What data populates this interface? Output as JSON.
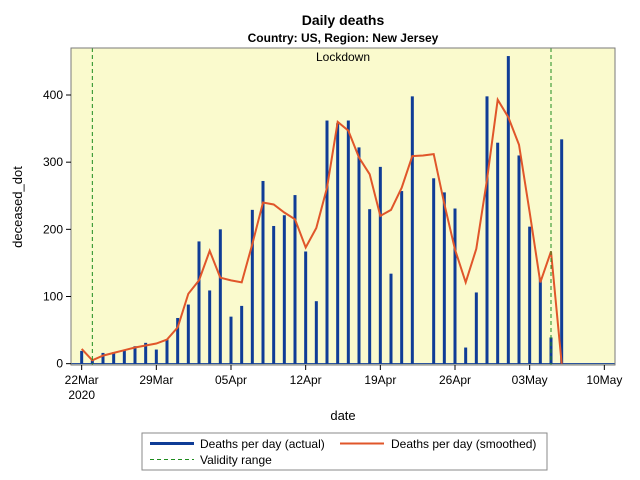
{
  "chart_data": {
    "type": "bar",
    "title": "Daily deaths",
    "subtitle": "Country: US, Region: New Jersey",
    "xlabel": "date",
    "ylabel": "deceased_dot",
    "ylim": [
      -2,
      470
    ],
    "yticks": [
      0,
      100,
      200,
      300,
      400
    ],
    "x_start": "2020-03-21",
    "x_end": "2020-05-11",
    "xticks": [
      {
        "day": 1,
        "label": "22Mar",
        "sublabel": "2020"
      },
      {
        "day": 8,
        "label": "29Mar",
        "sublabel": ""
      },
      {
        "day": 15,
        "label": "05Apr",
        "sublabel": ""
      },
      {
        "day": 22,
        "label": "12Apr",
        "sublabel": ""
      },
      {
        "day": 29,
        "label": "19Apr",
        "sublabel": ""
      },
      {
        "day": 36,
        "label": "26Apr",
        "sublabel": ""
      },
      {
        "day": 43,
        "label": "03May",
        "sublabel": ""
      },
      {
        "day": 50,
        "label": "10May",
        "sublabel": ""
      }
    ],
    "day_note": "day index = days since 2020-03-21",
    "lockdown_band": {
      "start_day": 0,
      "end_day": 51,
      "label": "Lockdown",
      "color": "#fafacd"
    },
    "validity_range": {
      "start_day": 2,
      "end_day": 45
    },
    "series": [
      {
        "name": "Deaths per day (actual)",
        "color": "#0f3c96",
        "days": [
          1,
          2,
          3,
          4,
          5,
          6,
          7,
          8,
          9,
          10,
          11,
          12,
          13,
          14,
          15,
          16,
          17,
          18,
          19,
          20,
          21,
          22,
          23,
          24,
          25,
          26,
          27,
          28,
          29,
          30,
          31,
          32,
          33,
          34,
          35,
          36,
          37,
          38,
          39,
          40,
          41,
          42,
          43,
          44,
          45,
          46
        ],
        "values": [
          19,
          5,
          16,
          17,
          20,
          26,
          31,
          21,
          36,
          68,
          88,
          182,
          109,
          200,
          70,
          86,
          229,
          272,
          205,
          221,
          251,
          167,
          93,
          362,
          358,
          362,
          322,
          230,
          293,
          134,
          257,
          398,
          0,
          276,
          255,
          231,
          24,
          106,
          398,
          329,
          458,
          310,
          204,
          128,
          39,
          334
        ]
      },
      {
        "name": "Deaths per day (smoothed)",
        "color": "#e0562a",
        "days": [
          1,
          2,
          3,
          4,
          5,
          6,
          7,
          8,
          9,
          10,
          11,
          12,
          13,
          14,
          15,
          16,
          17,
          18,
          19,
          20,
          21,
          22,
          23,
          24,
          25,
          26,
          27,
          28,
          29,
          30,
          31,
          32,
          33,
          34,
          35,
          36,
          37,
          38,
          39,
          40,
          41,
          42,
          43,
          44,
          45,
          46
        ],
        "values": [
          22,
          5,
          12,
          16,
          20,
          24,
          27,
          30,
          36,
          54,
          104,
          124,
          168,
          128,
          124,
          121,
          178,
          240,
          237,
          225,
          215,
          173,
          202,
          262,
          360,
          347,
          307,
          282,
          220,
          229,
          262,
          309,
          310,
          312,
          238,
          170,
          121,
          171,
          274,
          393,
          367,
          326,
          225,
          121,
          167,
          0
        ]
      }
    ]
  },
  "legend": {
    "items": [
      {
        "label": "Deaths per day (actual)"
      },
      {
        "label": "Deaths per day (smoothed)"
      },
      {
        "label": "Validity range"
      }
    ]
  }
}
